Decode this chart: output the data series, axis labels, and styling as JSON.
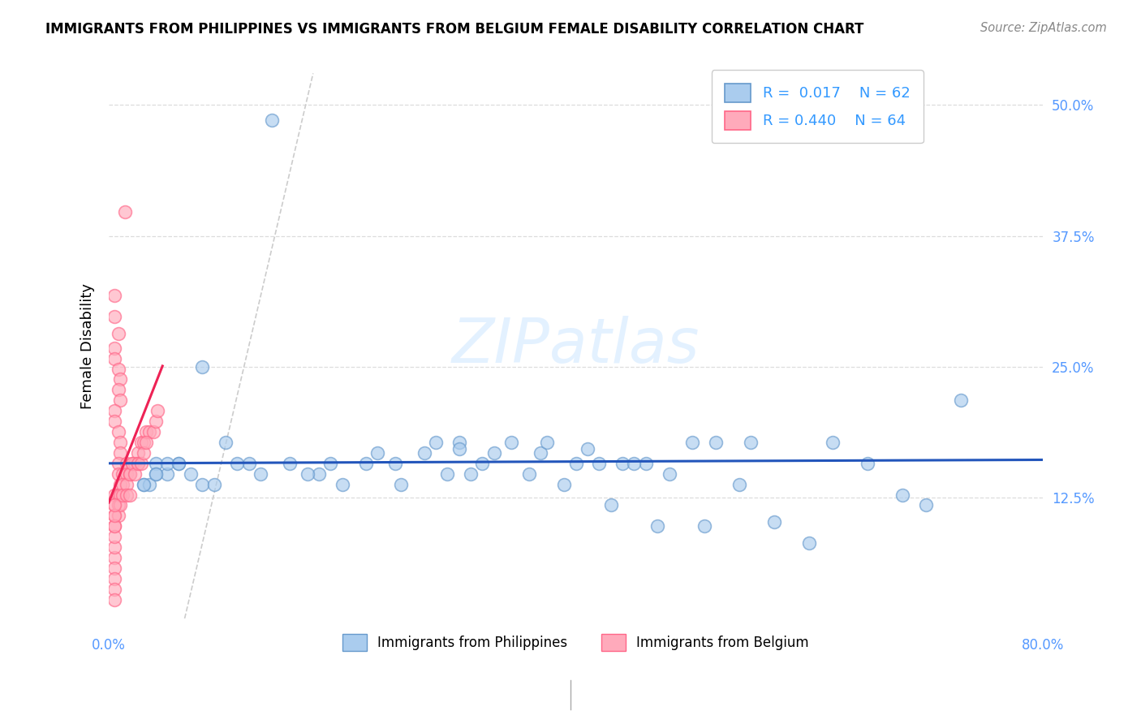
{
  "title": "IMMIGRANTS FROM PHILIPPINES VS IMMIGRANTS FROM BELGIUM FEMALE DISABILITY CORRELATION CHART",
  "source": "Source: ZipAtlas.com",
  "ylabel": "Female Disability",
  "yticks_labels": [
    "12.5%",
    "25.0%",
    "37.5%",
    "50.0%"
  ],
  "ytick_vals": [
    0.125,
    0.25,
    0.375,
    0.5
  ],
  "xlim": [
    0.0,
    0.8
  ],
  "ylim": [
    0.0,
    0.54
  ],
  "blue_color": "#6699CC",
  "blue_fill": "#AACCEE",
  "pink_color": "#FF6688",
  "pink_fill": "#FFAABB",
  "blue_R": 0.017,
  "blue_N": 62,
  "pink_R": 0.44,
  "pink_N": 64,
  "watermark": "ZIPatlas",
  "blue_scatter_x": [
    0.14,
    0.08,
    0.04,
    0.04,
    0.03,
    0.05,
    0.035,
    0.04,
    0.03,
    0.08,
    0.1,
    0.06,
    0.05,
    0.12,
    0.18,
    0.19,
    0.23,
    0.22,
    0.245,
    0.28,
    0.27,
    0.3,
    0.33,
    0.3,
    0.32,
    0.345,
    0.37,
    0.375,
    0.4,
    0.41,
    0.42,
    0.44,
    0.46,
    0.45,
    0.48,
    0.5,
    0.52,
    0.55,
    0.57,
    0.6,
    0.62,
    0.65,
    0.68,
    0.7,
    0.06,
    0.07,
    0.09,
    0.11,
    0.13,
    0.155,
    0.17,
    0.2,
    0.25,
    0.29,
    0.31,
    0.36,
    0.39,
    0.43,
    0.47,
    0.51,
    0.54,
    0.73
  ],
  "blue_scatter_y": [
    0.485,
    0.25,
    0.158,
    0.148,
    0.138,
    0.148,
    0.138,
    0.148,
    0.138,
    0.138,
    0.178,
    0.158,
    0.158,
    0.158,
    0.148,
    0.158,
    0.168,
    0.158,
    0.158,
    0.178,
    0.168,
    0.178,
    0.168,
    0.172,
    0.158,
    0.178,
    0.168,
    0.178,
    0.158,
    0.172,
    0.158,
    0.158,
    0.158,
    0.158,
    0.148,
    0.178,
    0.178,
    0.178,
    0.102,
    0.082,
    0.178,
    0.158,
    0.128,
    0.118,
    0.158,
    0.148,
    0.138,
    0.158,
    0.148,
    0.158,
    0.148,
    0.138,
    0.138,
    0.148,
    0.148,
    0.148,
    0.138,
    0.118,
    0.098,
    0.098,
    0.138,
    0.218
  ],
  "pink_scatter_x": [
    0.005,
    0.005,
    0.008,
    0.005,
    0.005,
    0.008,
    0.01,
    0.008,
    0.01,
    0.005,
    0.005,
    0.008,
    0.01,
    0.01,
    0.008,
    0.008,
    0.01,
    0.012,
    0.015,
    0.015,
    0.018,
    0.02,
    0.022,
    0.025,
    0.025,
    0.028,
    0.03,
    0.032,
    0.035,
    0.038,
    0.04,
    0.042,
    0.005,
    0.005,
    0.005,
    0.005,
    0.008,
    0.008,
    0.008,
    0.01,
    0.01,
    0.012,
    0.012,
    0.015,
    0.015,
    0.018,
    0.018,
    0.02,
    0.022,
    0.025,
    0.028,
    0.03,
    0.032,
    0.005,
    0.005,
    0.005,
    0.005,
    0.005,
    0.005,
    0.005,
    0.005,
    0.005,
    0.005,
    0.014
  ],
  "pink_scatter_y": [
    0.318,
    0.298,
    0.282,
    0.268,
    0.258,
    0.248,
    0.238,
    0.228,
    0.218,
    0.208,
    0.198,
    0.188,
    0.178,
    0.168,
    0.158,
    0.148,
    0.138,
    0.148,
    0.158,
    0.148,
    0.148,
    0.158,
    0.158,
    0.168,
    0.158,
    0.178,
    0.178,
    0.188,
    0.188,
    0.188,
    0.198,
    0.208,
    0.128,
    0.118,
    0.108,
    0.098,
    0.128,
    0.118,
    0.108,
    0.128,
    0.118,
    0.138,
    0.128,
    0.138,
    0.128,
    0.148,
    0.128,
    0.158,
    0.148,
    0.158,
    0.158,
    0.168,
    0.178,
    0.068,
    0.058,
    0.048,
    0.038,
    0.028,
    0.078,
    0.088,
    0.098,
    0.108,
    0.118,
    0.398
  ]
}
